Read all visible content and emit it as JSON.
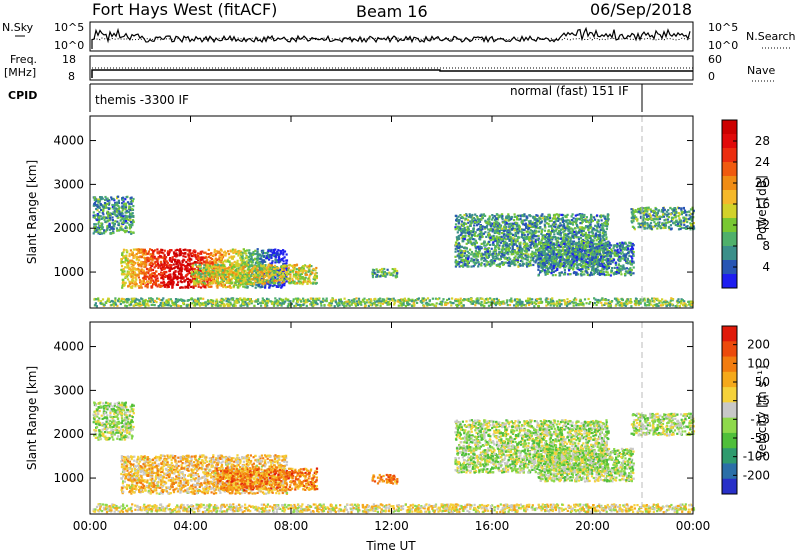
{
  "header": {
    "station": "Fort Hays West (fitACF)",
    "beam": "Beam 16",
    "date": "06/Sep/2018"
  },
  "top_panels": {
    "nsky_label": "N.Sky",
    "nsearch_label": "N.Search",
    "freq_label_line1": "Freq.",
    "freq_label_line2": "[MHz]",
    "nave_label": "Nave",
    "cpid_label": "CPID",
    "nsky_ticks": [
      "10^5",
      "10^0"
    ],
    "nsearch_ticks": [
      "10^5",
      "10^0"
    ],
    "freq_ticks": [
      "18",
      "8"
    ],
    "nave_ticks": [
      "60",
      "0"
    ],
    "cpid_segments": [
      {
        "start_hour": 0.0,
        "end_hour": 21.7,
        "label": "themis -3300 IF"
      },
      {
        "start_hour": 21.7,
        "end_hour": 24.0,
        "label": "normal (fast) 151 IF"
      }
    ]
  },
  "chart_data": [
    {
      "type": "heatmap",
      "name": "power",
      "xlabel": "",
      "ylabel": "Slant Range [km]",
      "x_tick_labels": [
        "00:00",
        "04:00",
        "08:00",
        "12:00",
        "16:00",
        "20:00",
        "00:00"
      ],
      "xlim_hours": [
        0,
        24
      ],
      "ylim_km": [
        180,
        4560
      ],
      "y_ticks": [
        1000,
        2000,
        3000,
        4000
      ],
      "colorbar": {
        "label": "Power [dB]",
        "ticks": [
          "4",
          "8",
          "12",
          "16",
          "20",
          "24",
          "28"
        ],
        "colors": [
          "#1e1ef0",
          "#2856b4",
          "#3b8f8a",
          "#4fb06b",
          "#78c832",
          "#d2d22a",
          "#f5b82a",
          "#f08c14",
          "#f05a0f",
          "#eb2d0f",
          "#e10a0a",
          "#cc0000"
        ]
      },
      "regions": [
        {
          "t0": 0.1,
          "t1": 1.7,
          "r0": 1850,
          "r1": 2700,
          "level": 0.25
        },
        {
          "t0": 1.2,
          "t1": 7.8,
          "r0": 620,
          "r1": 1500,
          "level": 0.85
        },
        {
          "t0": 4.0,
          "t1": 9.0,
          "r0": 700,
          "r1": 1150,
          "level": 0.45
        },
        {
          "t0": 11.2,
          "t1": 12.2,
          "r0": 850,
          "r1": 1050,
          "level": 0.3
        },
        {
          "t0": 14.5,
          "t1": 20.6,
          "r0": 1100,
          "r1": 2300,
          "level": 0.25
        },
        {
          "t0": 17.8,
          "t1": 21.6,
          "r0": 900,
          "r1": 1650,
          "level": 0.22
        },
        {
          "t0": 21.5,
          "t1": 24.0,
          "r0": 1950,
          "r1": 2450,
          "level": 0.28
        },
        {
          "t0": 0.1,
          "t1": 24.0,
          "r0": 200,
          "r1": 380,
          "level": 0.35
        }
      ]
    },
    {
      "type": "heatmap",
      "name": "velocity",
      "xlabel": "Time UT",
      "ylabel": "Slant Range [km]",
      "x_tick_labels": [
        "00:00",
        "04:00",
        "08:00",
        "12:00",
        "16:00",
        "20:00",
        "00:00"
      ],
      "xlim_hours": [
        0,
        24
      ],
      "ylim_km": [
        180,
        4560
      ],
      "y_ticks": [
        1000,
        2000,
        3000,
        4000
      ],
      "colorbar": {
        "label": "Velocity [m s⁻¹]",
        "ticks": [
          "200",
          "100",
          "50",
          "15",
          "-15",
          "-50",
          "-100",
          "-200"
        ],
        "colors": [
          "#2830c8",
          "#2b6fa8",
          "#2f9b6e",
          "#4fbf3a",
          "#8ed94b",
          "#c8c8c8",
          "#f5d23a",
          "#f5a91a",
          "#f27c0f",
          "#ec4a0c",
          "#e01a0a"
        ]
      },
      "regions": [
        {
          "t0": 0.1,
          "t1": 1.7,
          "r0": 1850,
          "r1": 2700,
          "level": 0.45
        },
        {
          "t0": 1.2,
          "t1": 7.8,
          "r0": 620,
          "r1": 1500,
          "level": 0.62
        },
        {
          "t0": 5.0,
          "t1": 9.0,
          "r0": 700,
          "r1": 1200,
          "level": 0.75
        },
        {
          "t0": 11.2,
          "t1": 12.2,
          "r0": 850,
          "r1": 1050,
          "level": 0.75
        },
        {
          "t0": 14.5,
          "t1": 20.6,
          "r0": 1100,
          "r1": 2300,
          "level": 0.45
        },
        {
          "t0": 17.8,
          "t1": 21.6,
          "r0": 900,
          "r1": 1650,
          "level": 0.45
        },
        {
          "t0": 21.5,
          "t1": 24.0,
          "r0": 1950,
          "r1": 2450,
          "level": 0.45
        },
        {
          "t0": 0.1,
          "t1": 24.0,
          "r0": 200,
          "r1": 380,
          "level": 0.55
        }
      ]
    }
  ]
}
